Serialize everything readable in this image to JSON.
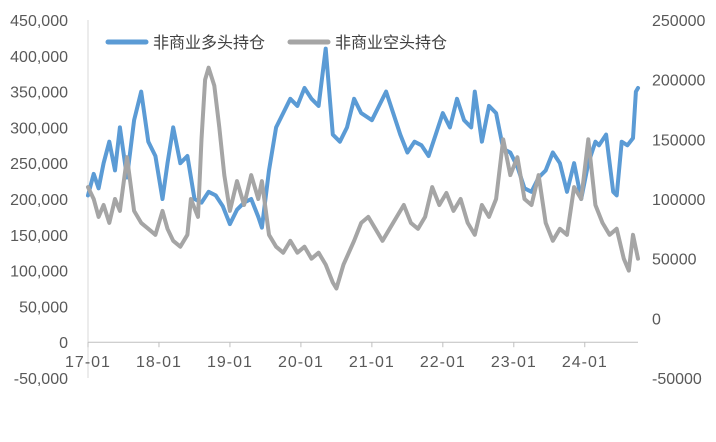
{
  "chart_data": {
    "type": "line",
    "title": "",
    "legend_position": "top-left",
    "grid": false,
    "x_ticks": [
      "17-01",
      "18-01",
      "19-01",
      "20-01",
      "21-01",
      "22-01",
      "23-01",
      "24-01"
    ],
    "x_range": [
      2017.0,
      2024.75
    ],
    "y_left": {
      "label": "",
      "range": [
        -50000,
        450000
      ],
      "tick_labels": [
        "-50,000",
        "0",
        "50,000",
        "100,000",
        "150,000",
        "200,000",
        "250,000",
        "300,000",
        "350,000",
        "400,000",
        "450,000"
      ],
      "tick_values": [
        -50000,
        0,
        50000,
        100000,
        150000,
        200000,
        250000,
        300000,
        350000,
        400000,
        450000
      ]
    },
    "y_right": {
      "label": "",
      "range": [
        -50000,
        250000
      ],
      "tick_labels": [
        "-50000",
        "0",
        "50000",
        "100000",
        "150000",
        "200000",
        "250000"
      ],
      "tick_values": [
        -50000,
        0,
        50000,
        100000,
        150000,
        200000,
        250000
      ]
    },
    "series": [
      {
        "name": "非商业多头持仓",
        "axis": "left",
        "color": "#5b9bd5",
        "points": [
          [
            2017.0,
            205000
          ],
          [
            2017.08,
            235000
          ],
          [
            2017.15,
            215000
          ],
          [
            2017.22,
            250000
          ],
          [
            2017.3,
            280000
          ],
          [
            2017.38,
            240000
          ],
          [
            2017.45,
            300000
          ],
          [
            2017.55,
            230000
          ],
          [
            2017.65,
            310000
          ],
          [
            2017.75,
            350000
          ],
          [
            2017.85,
            280000
          ],
          [
            2017.95,
            260000
          ],
          [
            2018.05,
            200000
          ],
          [
            2018.12,
            250000
          ],
          [
            2018.2,
            300000
          ],
          [
            2018.3,
            250000
          ],
          [
            2018.4,
            260000
          ],
          [
            2018.5,
            200000
          ],
          [
            2018.6,
            195000
          ],
          [
            2018.7,
            210000
          ],
          [
            2018.8,
            205000
          ],
          [
            2018.9,
            190000
          ],
          [
            2019.0,
            165000
          ],
          [
            2019.1,
            185000
          ],
          [
            2019.2,
            195000
          ],
          [
            2019.3,
            200000
          ],
          [
            2019.4,
            175000
          ],
          [
            2019.45,
            160000
          ],
          [
            2019.55,
            240000
          ],
          [
            2019.65,
            300000
          ],
          [
            2019.75,
            320000
          ],
          [
            2019.85,
            340000
          ],
          [
            2019.95,
            330000
          ],
          [
            2020.05,
            355000
          ],
          [
            2020.15,
            340000
          ],
          [
            2020.25,
            330000
          ],
          [
            2020.35,
            410000
          ],
          [
            2020.45,
            290000
          ],
          [
            2020.55,
            280000
          ],
          [
            2020.65,
            300000
          ],
          [
            2020.75,
            340000
          ],
          [
            2020.85,
            320000
          ],
          [
            2021.0,
            310000
          ],
          [
            2021.1,
            330000
          ],
          [
            2021.2,
            350000
          ],
          [
            2021.3,
            320000
          ],
          [
            2021.4,
            290000
          ],
          [
            2021.5,
            265000
          ],
          [
            2021.6,
            280000
          ],
          [
            2021.7,
            275000
          ],
          [
            2021.8,
            260000
          ],
          [
            2021.9,
            290000
          ],
          [
            2022.0,
            320000
          ],
          [
            2022.1,
            300000
          ],
          [
            2022.2,
            340000
          ],
          [
            2022.3,
            310000
          ],
          [
            2022.4,
            300000
          ],
          [
            2022.45,
            350000
          ],
          [
            2022.55,
            280000
          ],
          [
            2022.65,
            330000
          ],
          [
            2022.75,
            320000
          ],
          [
            2022.85,
            270000
          ],
          [
            2022.95,
            265000
          ],
          [
            2023.05,
            245000
          ],
          [
            2023.15,
            215000
          ],
          [
            2023.25,
            210000
          ],
          [
            2023.35,
            230000
          ],
          [
            2023.45,
            240000
          ],
          [
            2023.55,
            265000
          ],
          [
            2023.65,
            250000
          ],
          [
            2023.75,
            210000
          ],
          [
            2023.85,
            250000
          ],
          [
            2023.95,
            200000
          ],
          [
            2024.05,
            250000
          ],
          [
            2024.15,
            280000
          ],
          [
            2024.2,
            275000
          ],
          [
            2024.3,
            290000
          ],
          [
            2024.4,
            210000
          ],
          [
            2024.45,
            205000
          ],
          [
            2024.52,
            280000
          ],
          [
            2024.6,
            275000
          ],
          [
            2024.68,
            285000
          ],
          [
            2024.72,
            350000
          ],
          [
            2024.75,
            355000
          ]
        ]
      },
      {
        "name": "非商业空头持仓",
        "axis": "right",
        "color": "#a5a5a5",
        "points": [
          [
            2017.0,
            110000
          ],
          [
            2017.08,
            100000
          ],
          [
            2017.15,
            85000
          ],
          [
            2017.22,
            95000
          ],
          [
            2017.3,
            80000
          ],
          [
            2017.38,
            100000
          ],
          [
            2017.45,
            90000
          ],
          [
            2017.55,
            135000
          ],
          [
            2017.65,
            90000
          ],
          [
            2017.75,
            80000
          ],
          [
            2017.85,
            75000
          ],
          [
            2017.95,
            70000
          ],
          [
            2018.05,
            90000
          ],
          [
            2018.12,
            75000
          ],
          [
            2018.2,
            65000
          ],
          [
            2018.3,
            60000
          ],
          [
            2018.4,
            70000
          ],
          [
            2018.45,
            100000
          ],
          [
            2018.55,
            85000
          ],
          [
            2018.6,
            150000
          ],
          [
            2018.65,
            200000
          ],
          [
            2018.7,
            210000
          ],
          [
            2018.78,
            195000
          ],
          [
            2018.85,
            160000
          ],
          [
            2018.92,
            120000
          ],
          [
            2019.0,
            90000
          ],
          [
            2019.1,
            115000
          ],
          [
            2019.2,
            95000
          ],
          [
            2019.3,
            120000
          ],
          [
            2019.4,
            100000
          ],
          [
            2019.45,
            115000
          ],
          [
            2019.55,
            70000
          ],
          [
            2019.65,
            60000
          ],
          [
            2019.75,
            55000
          ],
          [
            2019.85,
            65000
          ],
          [
            2019.95,
            55000
          ],
          [
            2020.05,
            60000
          ],
          [
            2020.15,
            50000
          ],
          [
            2020.25,
            55000
          ],
          [
            2020.35,
            45000
          ],
          [
            2020.45,
            30000
          ],
          [
            2020.5,
            25000
          ],
          [
            2020.6,
            45000
          ],
          [
            2020.75,
            65000
          ],
          [
            2020.85,
            80000
          ],
          [
            2020.95,
            85000
          ],
          [
            2021.05,
            75000
          ],
          [
            2021.15,
            65000
          ],
          [
            2021.25,
            75000
          ],
          [
            2021.35,
            85000
          ],
          [
            2021.45,
            95000
          ],
          [
            2021.55,
            80000
          ],
          [
            2021.65,
            75000
          ],
          [
            2021.75,
            85000
          ],
          [
            2021.85,
            110000
          ],
          [
            2021.95,
            95000
          ],
          [
            2022.05,
            105000
          ],
          [
            2022.15,
            90000
          ],
          [
            2022.25,
            100000
          ],
          [
            2022.35,
            80000
          ],
          [
            2022.45,
            70000
          ],
          [
            2022.55,
            95000
          ],
          [
            2022.65,
            85000
          ],
          [
            2022.75,
            100000
          ],
          [
            2022.85,
            150000
          ],
          [
            2022.95,
            120000
          ],
          [
            2023.05,
            135000
          ],
          [
            2023.15,
            100000
          ],
          [
            2023.25,
            95000
          ],
          [
            2023.35,
            120000
          ],
          [
            2023.45,
            80000
          ],
          [
            2023.55,
            65000
          ],
          [
            2023.65,
            75000
          ],
          [
            2023.75,
            70000
          ],
          [
            2023.85,
            110000
          ],
          [
            2023.95,
            100000
          ],
          [
            2024.05,
            150000
          ],
          [
            2024.15,
            95000
          ],
          [
            2024.25,
            80000
          ],
          [
            2024.35,
            70000
          ],
          [
            2024.45,
            75000
          ],
          [
            2024.55,
            50000
          ],
          [
            2024.62,
            40000
          ],
          [
            2024.68,
            70000
          ],
          [
            2024.75,
            50000
          ]
        ]
      }
    ]
  }
}
